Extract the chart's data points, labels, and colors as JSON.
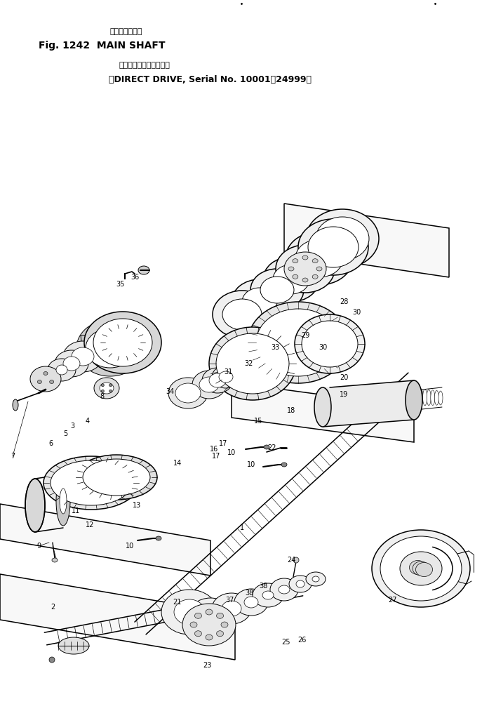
{
  "title_jp": "メインシャフト",
  "title_en": "Fig. 1242  MAIN SHAFT",
  "sub_jp": "（クラッチ式、適用号機",
  "sub_en": "（DIRECT DRIVE, Serial No. 10001－24999）",
  "bg": "#ffffff",
  "lw": 0.7,
  "lw2": 1.1
}
